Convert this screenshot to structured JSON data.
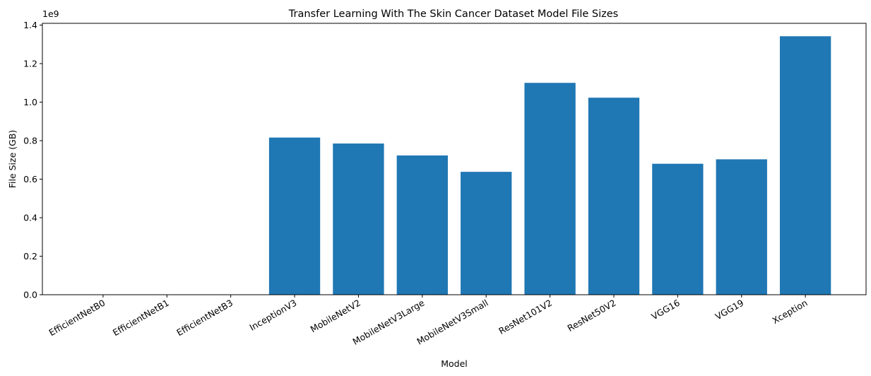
{
  "chart_data": {
    "type": "bar",
    "title": "Transfer Learning With The Skin Cancer Dataset Model File Sizes",
    "xlabel": "Model",
    "ylabel": "File Size (GB)",
    "y_offset_label": "1e9",
    "categories": [
      "EfficientNetB0",
      "EfficientNetB1",
      "EfficientNetB3",
      "InceptionV3",
      "MobileNetV2",
      "MobileNetV3Large",
      "MobileNetV3Small",
      "ResNet101V2",
      "ResNet50V2",
      "VGG16",
      "VGG19",
      "Xception"
    ],
    "values": [
      0,
      0,
      0,
      816000000,
      785000000,
      723000000,
      638000000,
      1100000000,
      1023000000,
      680000000,
      703000000,
      1342000000
    ],
    "ylim": [
      0,
      1409100000
    ],
    "yticks": [
      0,
      200000000,
      400000000,
      600000000,
      800000000,
      1000000000,
      1200000000,
      1400000000
    ],
    "ytick_labels": [
      "0.0",
      "0.2",
      "0.4",
      "0.6",
      "0.8",
      "1.0",
      "1.2",
      "1.4"
    ],
    "bar_color": "#1f77b4",
    "grid": false,
    "legend": "none"
  }
}
